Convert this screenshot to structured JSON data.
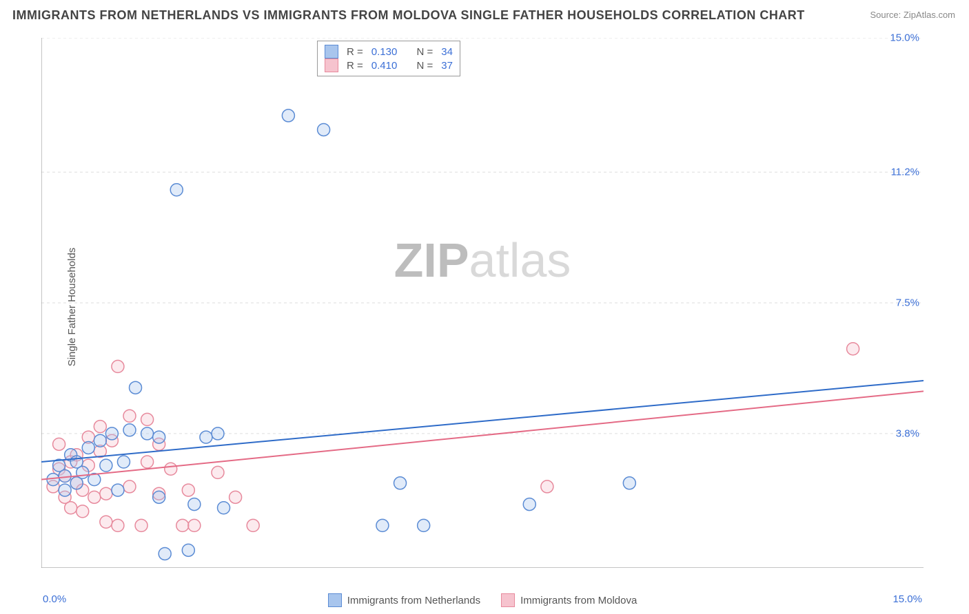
{
  "title": "IMMIGRANTS FROM NETHERLANDS VS IMMIGRANTS FROM MOLDOVA SINGLE FATHER HOUSEHOLDS CORRELATION CHART",
  "source": "Source: ZipAtlas.com",
  "watermark_bold": "ZIP",
  "watermark_light": "atlas",
  "y_axis_label": "Single Father Households",
  "chart": {
    "type": "scatter",
    "xlim": [
      0,
      15
    ],
    "ylim": [
      0,
      15
    ],
    "x_ticks": [
      0,
      2,
      4,
      6,
      8,
      10,
      12,
      14
    ],
    "y_ticks": [
      3.8,
      7.5,
      11.2,
      15.0
    ],
    "x_tick_labels": {
      "min": "0.0%",
      "max": "15.0%"
    },
    "y_tick_labels": [
      "3.8%",
      "7.5%",
      "11.2%",
      "15.0%"
    ],
    "grid_color": "#dddddd",
    "axis_color": "#888888",
    "background_color": "#ffffff",
    "marker_radius": 9,
    "marker_fill_opacity": 0.35,
    "marker_stroke_width": 1.5,
    "line_width": 2
  },
  "series": [
    {
      "name": "Immigrants from Netherlands",
      "fill_color": "#a8c5ed",
      "stroke_color": "#5a8bd4",
      "line_color": "#2e6bc8",
      "R": "0.130",
      "N": "34",
      "regression": {
        "x1": 0,
        "y1": 3.0,
        "x2": 15,
        "y2": 5.3
      },
      "points": [
        [
          0.2,
          2.5
        ],
        [
          0.3,
          2.9
        ],
        [
          0.4,
          2.6
        ],
        [
          0.5,
          3.2
        ],
        [
          0.6,
          2.4
        ],
        [
          0.6,
          3.0
        ],
        [
          0.7,
          2.7
        ],
        [
          0.8,
          3.4
        ],
        [
          0.9,
          2.5
        ],
        [
          1.0,
          3.6
        ],
        [
          1.2,
          3.8
        ],
        [
          1.3,
          2.2
        ],
        [
          1.4,
          3.0
        ],
        [
          1.5,
          3.9
        ],
        [
          1.6,
          5.1
        ],
        [
          1.8,
          3.8
        ],
        [
          2.0,
          2.0
        ],
        [
          2.0,
          3.7
        ],
        [
          2.1,
          0.4
        ],
        [
          2.3,
          10.7
        ],
        [
          2.5,
          0.5
        ],
        [
          2.6,
          1.8
        ],
        [
          2.8,
          3.7
        ],
        [
          3.0,
          3.8
        ],
        [
          3.1,
          1.7
        ],
        [
          4.2,
          12.8
        ],
        [
          4.8,
          12.4
        ],
        [
          5.8,
          1.2
        ],
        [
          6.1,
          2.4
        ],
        [
          6.5,
          1.2
        ],
        [
          8.3,
          1.8
        ],
        [
          10.0,
          2.4
        ],
        [
          0.4,
          2.2
        ],
        [
          1.1,
          2.9
        ]
      ]
    },
    {
      "name": "Immigrants from Moldova",
      "fill_color": "#f6c3ce",
      "stroke_color": "#e7899c",
      "line_color": "#e46a85",
      "R": "0.410",
      "N": "37",
      "regression": {
        "x1": 0,
        "y1": 2.5,
        "x2": 15,
        "y2": 5.0
      },
      "points": [
        [
          0.2,
          2.3
        ],
        [
          0.3,
          2.8
        ],
        [
          0.4,
          2.0
        ],
        [
          0.4,
          2.6
        ],
        [
          0.5,
          3.0
        ],
        [
          0.5,
          1.7
        ],
        [
          0.6,
          2.4
        ],
        [
          0.6,
          3.2
        ],
        [
          0.7,
          2.2
        ],
        [
          0.8,
          2.9
        ],
        [
          0.8,
          3.7
        ],
        [
          0.9,
          2.0
        ],
        [
          1.0,
          3.3
        ],
        [
          1.0,
          4.0
        ],
        [
          1.1,
          2.1
        ],
        [
          1.2,
          3.6
        ],
        [
          1.3,
          1.2
        ],
        [
          1.3,
          5.7
        ],
        [
          1.5,
          2.3
        ],
        [
          1.5,
          4.3
        ],
        [
          1.7,
          1.2
        ],
        [
          1.8,
          3.0
        ],
        [
          1.8,
          4.2
        ],
        [
          2.0,
          2.1
        ],
        [
          2.0,
          3.5
        ],
        [
          2.2,
          2.8
        ],
        [
          2.4,
          1.2
        ],
        [
          2.5,
          2.2
        ],
        [
          2.6,
          1.2
        ],
        [
          3.0,
          2.7
        ],
        [
          3.3,
          2.0
        ],
        [
          3.6,
          1.2
        ],
        [
          0.3,
          3.5
        ],
        [
          0.7,
          1.6
        ],
        [
          8.6,
          2.3
        ],
        [
          1.1,
          1.3
        ],
        [
          13.8,
          6.2
        ]
      ]
    }
  ],
  "stat_box": {
    "r_label": "R =",
    "n_label": "N ="
  }
}
